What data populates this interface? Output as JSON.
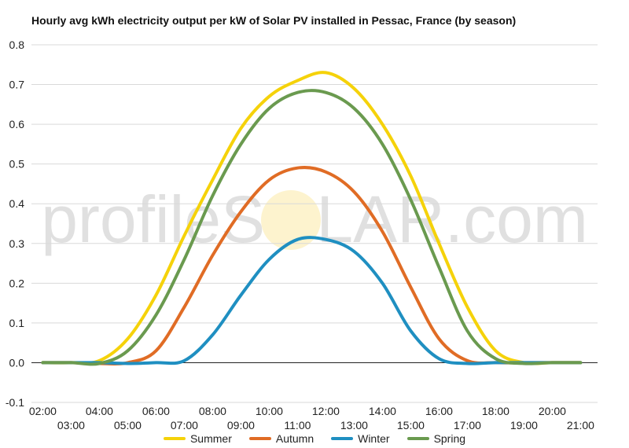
{
  "chart_data": {
    "type": "line",
    "title": "Hourly avg kWh electricity output per kW of Solar PV installed in Pessac, France (by season)",
    "xlabel": "",
    "ylabel": "",
    "x": [
      2,
      3,
      4,
      5,
      6,
      7,
      8,
      9,
      10,
      11,
      12,
      13,
      14,
      15,
      16,
      17,
      18,
      19,
      20,
      21
    ],
    "x_tick_labels": [
      "02:00",
      "03:00",
      "04:00",
      "05:00",
      "06:00",
      "07:00",
      "08:00",
      "09:00",
      "10:00",
      "11:00",
      "12:00",
      "13:00",
      "14:00",
      "15:00",
      "16:00",
      "17:00",
      "18:00",
      "19:00",
      "20:00",
      "21:00"
    ],
    "ylim": [
      -0.1,
      0.8
    ],
    "y_ticks": [
      "0.8",
      "0.7",
      "0.6",
      "0.5",
      "0.4",
      "0.3",
      "0.2",
      "0.1",
      "0.0",
      "-0.1"
    ],
    "grid": true,
    "legend_position": "bottom",
    "series": [
      {
        "name": "Summer",
        "color": "#f5d20a",
        "values": [
          0,
          0,
          0.005,
          0.06,
          0.17,
          0.32,
          0.46,
          0.59,
          0.67,
          0.71,
          0.73,
          0.69,
          0.6,
          0.47,
          0.3,
          0.14,
          0.03,
          0,
          0,
          0
        ]
      },
      {
        "name": "Autumn",
        "color": "#e06c25",
        "values": [
          0,
          0,
          -0.002,
          0,
          0.03,
          0.14,
          0.27,
          0.38,
          0.46,
          0.49,
          0.48,
          0.43,
          0.33,
          0.19,
          0.06,
          0.005,
          0,
          0,
          0,
          0
        ]
      },
      {
        "name": "Winter",
        "color": "#1f8fc1",
        "values": [
          0,
          0,
          0,
          -0.002,
          0,
          0.005,
          0.07,
          0.17,
          0.26,
          0.31,
          0.31,
          0.28,
          0.2,
          0.08,
          0.01,
          -0.002,
          0,
          0,
          0,
          0
        ]
      },
      {
        "name": "Spring",
        "color": "#6a9a4f",
        "values": [
          0,
          0,
          -0.002,
          0.03,
          0.12,
          0.26,
          0.42,
          0.55,
          0.64,
          0.68,
          0.68,
          0.64,
          0.55,
          0.41,
          0.24,
          0.08,
          0.01,
          -0.002,
          0,
          0
        ]
      }
    ],
    "watermark": "profileSOLAR.com"
  }
}
